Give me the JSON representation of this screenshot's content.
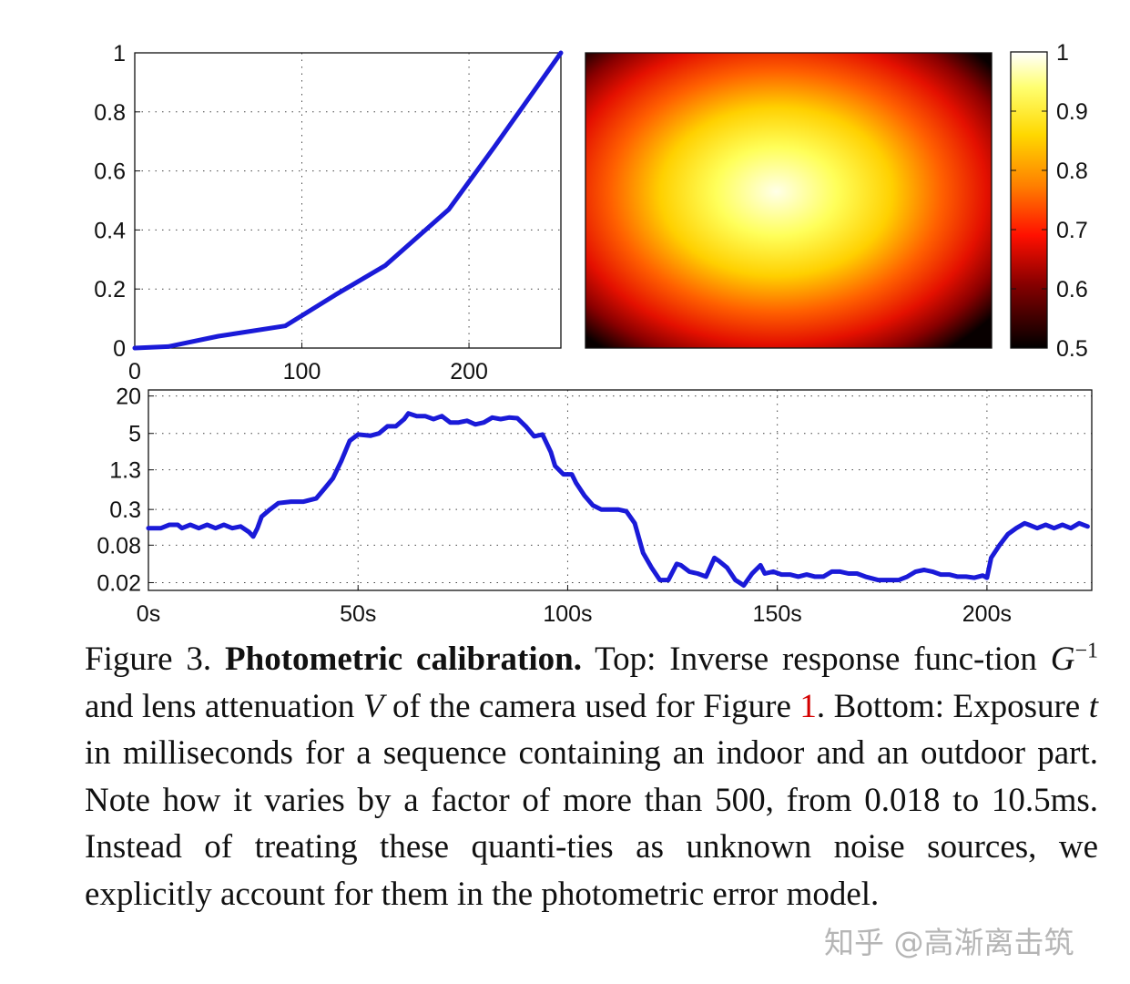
{
  "chart_data": [
    {
      "type": "line",
      "name": "Inverse response function G^-1",
      "title": "",
      "xlabel": "",
      "ylabel": "",
      "xlim": [
        0,
        255
      ],
      "ylim": [
        0,
        1
      ],
      "grid": true,
      "x_ticks": [
        "0",
        "100",
        "200"
      ],
      "y_ticks": [
        "0",
        "0.2",
        "0.4",
        "0.6",
        "0.8",
        "1"
      ],
      "series": [
        {
          "name": "G^-1",
          "color": "#1a1ad8",
          "x": [
            0,
            20,
            50,
            90,
            120,
            150,
            188,
            215,
            240,
            255
          ],
          "y": [
            0,
            0.005,
            0.04,
            0.075,
            0.18,
            0.28,
            0.47,
            0.68,
            0.88,
            1.0
          ]
        }
      ]
    },
    {
      "type": "heatmap",
      "name": "Lens attenuation V",
      "colormap": "hot",
      "center": [
        0.47,
        0.47
      ],
      "value_center": 1.0,
      "value_corner": 0.5,
      "colorbar_range": [
        0.5,
        1
      ],
      "colorbar_ticks": [
        "1",
        "0.9",
        "0.8",
        "0.7",
        "0.6",
        "0.5"
      ]
    },
    {
      "type": "line",
      "name": "Exposure t (ms)",
      "yscale": "log",
      "xlim": [
        0,
        225
      ],
      "ylim": [
        0.015,
        25
      ],
      "grid": true,
      "x_ticks": [
        "0s",
        "50s",
        "100s",
        "150s",
        "200s"
      ],
      "y_ticks": [
        "20",
        "5",
        "1.3",
        "0.3",
        "0.08",
        "0.02"
      ],
      "y_tick_values": [
        20,
        5,
        1.3,
        0.3,
        0.08,
        0.02
      ],
      "series": [
        {
          "name": "exposure",
          "color": "#1a1ad8",
          "x": [
            0,
            3,
            5,
            7,
            8,
            10,
            12,
            14,
            16,
            18,
            20,
            22,
            24,
            25,
            26,
            27,
            29,
            31,
            34,
            37,
            40,
            42,
            44,
            46,
            48,
            50,
            53,
            55,
            57,
            59,
            61,
            62,
            64,
            66,
            68,
            70,
            72,
            74,
            76,
            78,
            80,
            82,
            84,
            86,
            88,
            90,
            92,
            94,
            96,
            97,
            99,
            101,
            102,
            104,
            106,
            108,
            110,
            112,
            114,
            116,
            118,
            120,
            122,
            124,
            126,
            127,
            129,
            131,
            133,
            135,
            136,
            138,
            140,
            141,
            142,
            144,
            146,
            147,
            149,
            151,
            153,
            155,
            157,
            159,
            161,
            163,
            165,
            167,
            169,
            171,
            174,
            177,
            179,
            181,
            183,
            185,
            187,
            189,
            191,
            193,
            195,
            197,
            199,
            200,
            201,
            203,
            205,
            207,
            209,
            210,
            212,
            214,
            216,
            218,
            220,
            222,
            224
          ],
          "y": [
            0.15,
            0.15,
            0.17,
            0.17,
            0.15,
            0.17,
            0.15,
            0.17,
            0.15,
            0.17,
            0.15,
            0.16,
            0.13,
            0.11,
            0.15,
            0.23,
            0.3,
            0.38,
            0.4,
            0.4,
            0.45,
            0.65,
            0.95,
            1.8,
            3.8,
            4.8,
            4.6,
            5.0,
            6.5,
            6.5,
            8.5,
            10.5,
            9.5,
            9.5,
            8.5,
            9.5,
            7.5,
            7.5,
            8.0,
            7.0,
            7.5,
            9.0,
            8.5,
            9.0,
            8.8,
            6.5,
            4.5,
            4.8,
            2.5,
            1.5,
            1.1,
            1.1,
            0.8,
            0.5,
            0.35,
            0.3,
            0.3,
            0.3,
            0.28,
            0.18,
            0.06,
            0.035,
            0.022,
            0.022,
            0.04,
            0.038,
            0.03,
            0.028,
            0.025,
            0.05,
            0.045,
            0.035,
            0.022,
            0.02,
            0.018,
            0.028,
            0.038,
            0.028,
            0.03,
            0.027,
            0.027,
            0.025,
            0.027,
            0.025,
            0.025,
            0.03,
            0.03,
            0.028,
            0.028,
            0.025,
            0.022,
            0.022,
            0.022,
            0.025,
            0.03,
            0.032,
            0.03,
            0.027,
            0.027,
            0.025,
            0.025,
            0.024,
            0.026,
            0.024,
            0.05,
            0.08,
            0.12,
            0.15,
            0.18,
            0.17,
            0.15,
            0.17,
            0.15,
            0.17,
            0.15,
            0.18,
            0.16
          ]
        }
      ]
    }
  ],
  "caption": {
    "figure_label": "Figure 3.",
    "title": "Photometric calibration.",
    "part1": "Top: Inverse response func-tion",
    "g_symbol": "G",
    "g_exponent": "−1",
    "part2": "and lens attenuation",
    "v_symbol": "V",
    "part3": "of the camera used for Figure",
    "figure_ref": "1",
    "part4": ".",
    "part5": "Bottom: Exposure",
    "t_symbol": "t",
    "part6": "in milliseconds for a sequence containing an indoor and an outdoor part. Note how it varies by a factor of more than 500, from 0.018 to 10.5ms. Instead of treating these quanti-ties as unknown noise sources, we explicitly account for them in the photometric error model."
  },
  "watermark": "知乎 @高渐离击筑"
}
